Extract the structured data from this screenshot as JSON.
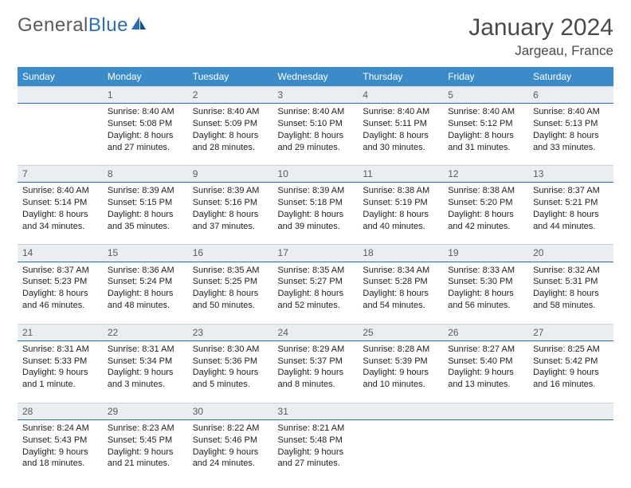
{
  "logo": {
    "text1": "General",
    "text2": "Blue"
  },
  "title": "January 2024",
  "location": "Jargeau, France",
  "header_bg": "#3b8bc9",
  "dayrow_bg": "#e9eef3",
  "dayrow_border": "#2a6fb5",
  "weekdays": [
    "Sunday",
    "Monday",
    "Tuesday",
    "Wednesday",
    "Thursday",
    "Friday",
    "Saturday"
  ],
  "weeks": [
    {
      "nums": [
        "",
        "1",
        "2",
        "3",
        "4",
        "5",
        "6"
      ],
      "cells": [
        null,
        {
          "sunrise": "Sunrise: 8:40 AM",
          "sunset": "Sunset: 5:08 PM",
          "d1": "Daylight: 8 hours",
          "d2": "and 27 minutes."
        },
        {
          "sunrise": "Sunrise: 8:40 AM",
          "sunset": "Sunset: 5:09 PM",
          "d1": "Daylight: 8 hours",
          "d2": "and 28 minutes."
        },
        {
          "sunrise": "Sunrise: 8:40 AM",
          "sunset": "Sunset: 5:10 PM",
          "d1": "Daylight: 8 hours",
          "d2": "and 29 minutes."
        },
        {
          "sunrise": "Sunrise: 8:40 AM",
          "sunset": "Sunset: 5:11 PM",
          "d1": "Daylight: 8 hours",
          "d2": "and 30 minutes."
        },
        {
          "sunrise": "Sunrise: 8:40 AM",
          "sunset": "Sunset: 5:12 PM",
          "d1": "Daylight: 8 hours",
          "d2": "and 31 minutes."
        },
        {
          "sunrise": "Sunrise: 8:40 AM",
          "sunset": "Sunset: 5:13 PM",
          "d1": "Daylight: 8 hours",
          "d2": "and 33 minutes."
        }
      ]
    },
    {
      "nums": [
        "7",
        "8",
        "9",
        "10",
        "11",
        "12",
        "13"
      ],
      "cells": [
        {
          "sunrise": "Sunrise: 8:40 AM",
          "sunset": "Sunset: 5:14 PM",
          "d1": "Daylight: 8 hours",
          "d2": "and 34 minutes."
        },
        {
          "sunrise": "Sunrise: 8:39 AM",
          "sunset": "Sunset: 5:15 PM",
          "d1": "Daylight: 8 hours",
          "d2": "and 35 minutes."
        },
        {
          "sunrise": "Sunrise: 8:39 AM",
          "sunset": "Sunset: 5:16 PM",
          "d1": "Daylight: 8 hours",
          "d2": "and 37 minutes."
        },
        {
          "sunrise": "Sunrise: 8:39 AM",
          "sunset": "Sunset: 5:18 PM",
          "d1": "Daylight: 8 hours",
          "d2": "and 39 minutes."
        },
        {
          "sunrise": "Sunrise: 8:38 AM",
          "sunset": "Sunset: 5:19 PM",
          "d1": "Daylight: 8 hours",
          "d2": "and 40 minutes."
        },
        {
          "sunrise": "Sunrise: 8:38 AM",
          "sunset": "Sunset: 5:20 PM",
          "d1": "Daylight: 8 hours",
          "d2": "and 42 minutes."
        },
        {
          "sunrise": "Sunrise: 8:37 AM",
          "sunset": "Sunset: 5:21 PM",
          "d1": "Daylight: 8 hours",
          "d2": "and 44 minutes."
        }
      ]
    },
    {
      "nums": [
        "14",
        "15",
        "16",
        "17",
        "18",
        "19",
        "20"
      ],
      "cells": [
        {
          "sunrise": "Sunrise: 8:37 AM",
          "sunset": "Sunset: 5:23 PM",
          "d1": "Daylight: 8 hours",
          "d2": "and 46 minutes."
        },
        {
          "sunrise": "Sunrise: 8:36 AM",
          "sunset": "Sunset: 5:24 PM",
          "d1": "Daylight: 8 hours",
          "d2": "and 48 minutes."
        },
        {
          "sunrise": "Sunrise: 8:35 AM",
          "sunset": "Sunset: 5:25 PM",
          "d1": "Daylight: 8 hours",
          "d2": "and 50 minutes."
        },
        {
          "sunrise": "Sunrise: 8:35 AM",
          "sunset": "Sunset: 5:27 PM",
          "d1": "Daylight: 8 hours",
          "d2": "and 52 minutes."
        },
        {
          "sunrise": "Sunrise: 8:34 AM",
          "sunset": "Sunset: 5:28 PM",
          "d1": "Daylight: 8 hours",
          "d2": "and 54 minutes."
        },
        {
          "sunrise": "Sunrise: 8:33 AM",
          "sunset": "Sunset: 5:30 PM",
          "d1": "Daylight: 8 hours",
          "d2": "and 56 minutes."
        },
        {
          "sunrise": "Sunrise: 8:32 AM",
          "sunset": "Sunset: 5:31 PM",
          "d1": "Daylight: 8 hours",
          "d2": "and 58 minutes."
        }
      ]
    },
    {
      "nums": [
        "21",
        "22",
        "23",
        "24",
        "25",
        "26",
        "27"
      ],
      "cells": [
        {
          "sunrise": "Sunrise: 8:31 AM",
          "sunset": "Sunset: 5:33 PM",
          "d1": "Daylight: 9 hours",
          "d2": "and 1 minute."
        },
        {
          "sunrise": "Sunrise: 8:31 AM",
          "sunset": "Sunset: 5:34 PM",
          "d1": "Daylight: 9 hours",
          "d2": "and 3 minutes."
        },
        {
          "sunrise": "Sunrise: 8:30 AM",
          "sunset": "Sunset: 5:36 PM",
          "d1": "Daylight: 9 hours",
          "d2": "and 5 minutes."
        },
        {
          "sunrise": "Sunrise: 8:29 AM",
          "sunset": "Sunset: 5:37 PM",
          "d1": "Daylight: 9 hours",
          "d2": "and 8 minutes."
        },
        {
          "sunrise": "Sunrise: 8:28 AM",
          "sunset": "Sunset: 5:39 PM",
          "d1": "Daylight: 9 hours",
          "d2": "and 10 minutes."
        },
        {
          "sunrise": "Sunrise: 8:27 AM",
          "sunset": "Sunset: 5:40 PM",
          "d1": "Daylight: 9 hours",
          "d2": "and 13 minutes."
        },
        {
          "sunrise": "Sunrise: 8:25 AM",
          "sunset": "Sunset: 5:42 PM",
          "d1": "Daylight: 9 hours",
          "d2": "and 16 minutes."
        }
      ]
    },
    {
      "nums": [
        "28",
        "29",
        "30",
        "31",
        "",
        "",
        ""
      ],
      "cells": [
        {
          "sunrise": "Sunrise: 8:24 AM",
          "sunset": "Sunset: 5:43 PM",
          "d1": "Daylight: 9 hours",
          "d2": "and 18 minutes."
        },
        {
          "sunrise": "Sunrise: 8:23 AM",
          "sunset": "Sunset: 5:45 PM",
          "d1": "Daylight: 9 hours",
          "d2": "and 21 minutes."
        },
        {
          "sunrise": "Sunrise: 8:22 AM",
          "sunset": "Sunset: 5:46 PM",
          "d1": "Daylight: 9 hours",
          "d2": "and 24 minutes."
        },
        {
          "sunrise": "Sunrise: 8:21 AM",
          "sunset": "Sunset: 5:48 PM",
          "d1": "Daylight: 9 hours",
          "d2": "and 27 minutes."
        },
        null,
        null,
        null
      ]
    }
  ]
}
